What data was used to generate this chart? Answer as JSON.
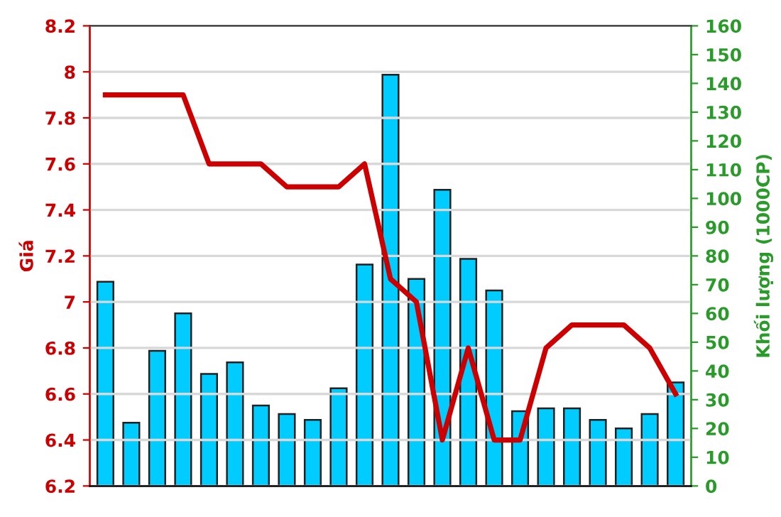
{
  "chart_data": {
    "type": "bar",
    "ylabel": "Giá",
    "y2label": "Khối lượng (1000CP)",
    "categories": [
      null,
      null,
      null,
      null,
      null,
      null,
      null,
      null,
      null,
      null,
      null,
      null,
      null,
      null,
      null,
      null,
      null,
      null,
      null,
      null,
      null,
      null,
      null
    ],
    "series": [
      {
        "axis": "y2",
        "color": "#00ccff",
        "values": [
          71,
          22,
          47,
          60,
          39,
          43,
          28,
          25,
          23,
          34,
          77,
          143,
          72,
          103,
          79,
          68,
          26,
          27,
          27,
          23,
          20,
          25,
          36
        ]
      },
      {
        "type": "line",
        "axis": "y",
        "color": "#cc0000",
        "values": [
          7.9,
          7.9,
          7.9,
          7.9,
          7.6,
          7.6,
          7.6,
          7.5,
          7.5,
          7.5,
          7.6,
          7.1,
          7.0,
          6.4,
          6.8,
          6.4,
          6.4,
          6.8,
          6.9,
          6.9,
          6.9,
          6.8,
          6.6
        ]
      }
    ],
    "ylim": [
      6.2,
      8.2
    ],
    "yticks": [
      6.2,
      6.4,
      6.6,
      6.8,
      7,
      7.2,
      7.4,
      7.6,
      7.8,
      8,
      8.2
    ],
    "y2lim": [
      0,
      160
    ],
    "y2ticks": [
      0,
      10,
      20,
      30,
      40,
      50,
      60,
      70,
      80,
      90,
      100,
      110,
      120,
      130,
      140,
      150,
      160
    ],
    "grid": "y",
    "tick_labels": "y",
    "marker": "none",
    "line_style": "solid"
  }
}
